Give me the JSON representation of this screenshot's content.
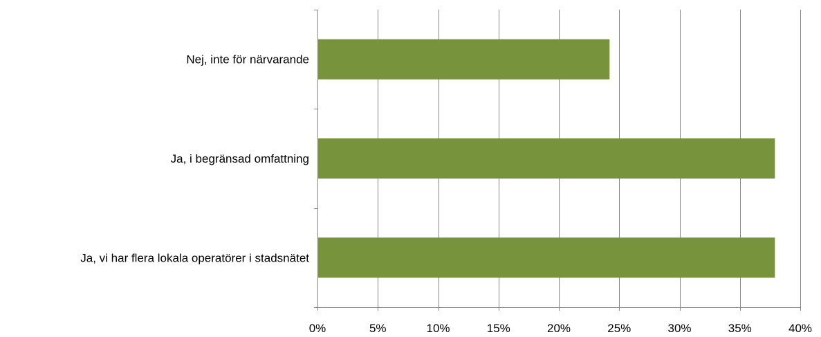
{
  "chart_data": {
    "type": "bar",
    "orientation": "horizontal",
    "categories": [
      "Nej, inte för närvarande",
      "Ja, i begränsad omfattning",
      "Ja, vi har flera lokala operatörer i stadsnätet"
    ],
    "values": [
      24.2,
      37.9,
      37.9
    ],
    "xlim": [
      0,
      40
    ],
    "x_ticks": [
      0,
      5,
      10,
      15,
      20,
      25,
      30,
      35,
      40
    ],
    "x_tick_labels": [
      "0%",
      "5%",
      "10%",
      "15%",
      "20%",
      "25%",
      "30%",
      "35%",
      "40%"
    ],
    "title": "",
    "xlabel": "",
    "ylabel": "",
    "grid": "vertical",
    "legend": "none",
    "colors": {
      "bar": "#77933c",
      "grid": "#868686",
      "axis": "#868686"
    }
  }
}
